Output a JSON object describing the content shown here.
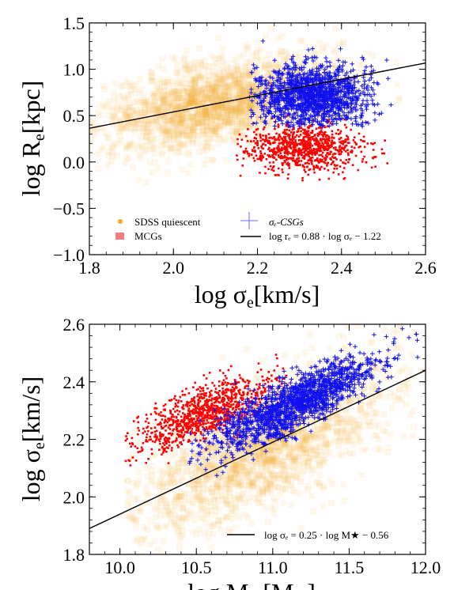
{
  "chart_data": [
    {
      "type": "scatter",
      "xlabel": "log σ",
      "xlabel_sub": "e",
      "xlabel_unit": "[km/s]",
      "ylabel": "log R",
      "ylabel_sub": "e",
      "ylabel_unit": "[kpc]",
      "xlim": [
        1.8,
        2.6
      ],
      "ylim": [
        -1.0,
        1.5
      ],
      "xticks": [
        "1.8",
        "2.0",
        "2.2",
        "2.4",
        "2.6"
      ],
      "xtick_values": [
        1.8,
        2.0,
        2.2,
        2.4,
        2.6
      ],
      "yticks": [
        "−1.0",
        "−0.5",
        "0.0",
        "0.5",
        "1.0",
        "1.5"
      ],
      "ytick_values": [
        -1.0,
        -0.5,
        0.0,
        0.5,
        1.0,
        1.5
      ],
      "grid": false,
      "legend_position": "bottom",
      "legend": {
        "sdss": "SDSS  quiescent",
        "mcg": "MCGs",
        "csg": "σₑ-CSGs",
        "fit": "log rₑ = 0.88 · log σₑ − 1.22"
      },
      "series": [
        {
          "name": "SDSS  quiescent",
          "color": "#f5a623",
          "marker": "dot",
          "distribution": {
            "x_center": 2.1,
            "x_spread": 0.14,
            "x_min": 1.8,
            "x_max": 2.58,
            "slope": 0.88,
            "intercept": -1.22,
            "y_scatter": 0.23
          }
        },
        {
          "name": "MCGs",
          "color": "#ff0000",
          "marker": "dot",
          "distribution": {
            "x_center": 2.31,
            "x_spread": 0.07,
            "x_min": 2.15,
            "x_max": 2.52,
            "y_center": 0.15,
            "y_spread": 0.13,
            "y_min": -0.35,
            "y_max": 0.55
          }
        },
        {
          "name": "σₑ-CSGs",
          "color": "#1010ee",
          "marker": "plus",
          "distribution": {
            "x_center": 2.33,
            "x_spread": 0.07,
            "x_min": 2.18,
            "x_max": 2.52,
            "y_center": 0.72,
            "y_spread": 0.17,
            "y_min": 0.38,
            "y_max": 1.4
          }
        }
      ],
      "fit_line": {
        "slope": 0.88,
        "intercept": -1.22,
        "x": [
          1.8,
          2.6
        ],
        "color": "#000000"
      }
    },
    {
      "type": "scatter",
      "xlabel": "log M",
      "xlabel_sub": "★",
      "xlabel_unit": "[M",
      "xlabel_unit_sub": "⊙",
      "xlabel_unit_end": "]",
      "ylabel": "log σ",
      "ylabel_sub": "e",
      "ylabel_unit": "[km/s]",
      "xlim": [
        9.8,
        12.0
      ],
      "ylim": [
        1.8,
        2.6
      ],
      "xticks": [
        "10.0",
        "10.5",
        "11.0",
        "11.5",
        "12.0"
      ],
      "xtick_values": [
        10.0,
        10.5,
        11.0,
        11.5,
        12.0
      ],
      "yticks": [
        "1.8",
        "2.0",
        "2.2",
        "2.4",
        "2.6"
      ],
      "ytick_values": [
        1.8,
        2.0,
        2.2,
        2.4,
        2.6
      ],
      "grid": false,
      "legend_position": "bottom-right",
      "legend": {
        "fit": "log σₑ = 0.25 · log M★ − 0.56"
      },
      "series": [
        {
          "name": "SDSS quiescent",
          "color": "#f5a623",
          "marker": "dot",
          "distribution": {
            "x_center": 10.95,
            "x_spread": 0.42,
            "x_min": 10.02,
            "x_max": 12.0,
            "slope": 0.25,
            "intercept": -0.56,
            "y_scatter": 0.11
          }
        },
        {
          "name": "MCGs",
          "color": "#ff0000",
          "marker": "dot",
          "distribution": {
            "x_center": 10.55,
            "x_spread": 0.22,
            "x_min": 10.02,
            "x_max": 11.1,
            "slope": 0.2,
            "intercept": 0.18,
            "y_scatter": 0.045
          }
        },
        {
          "name": "CSGs",
          "color": "#1010ee",
          "marker": "plus",
          "distribution": {
            "x_center": 11.15,
            "x_spread": 0.27,
            "x_min": 10.45,
            "x_max": 11.95,
            "slope": 0.25,
            "intercept": -0.46,
            "y_scatter": 0.045
          }
        }
      ],
      "fit_line": {
        "slope": 0.25,
        "intercept": -0.56,
        "x": [
          9.8,
          12.0
        ],
        "color": "#000000"
      }
    }
  ]
}
